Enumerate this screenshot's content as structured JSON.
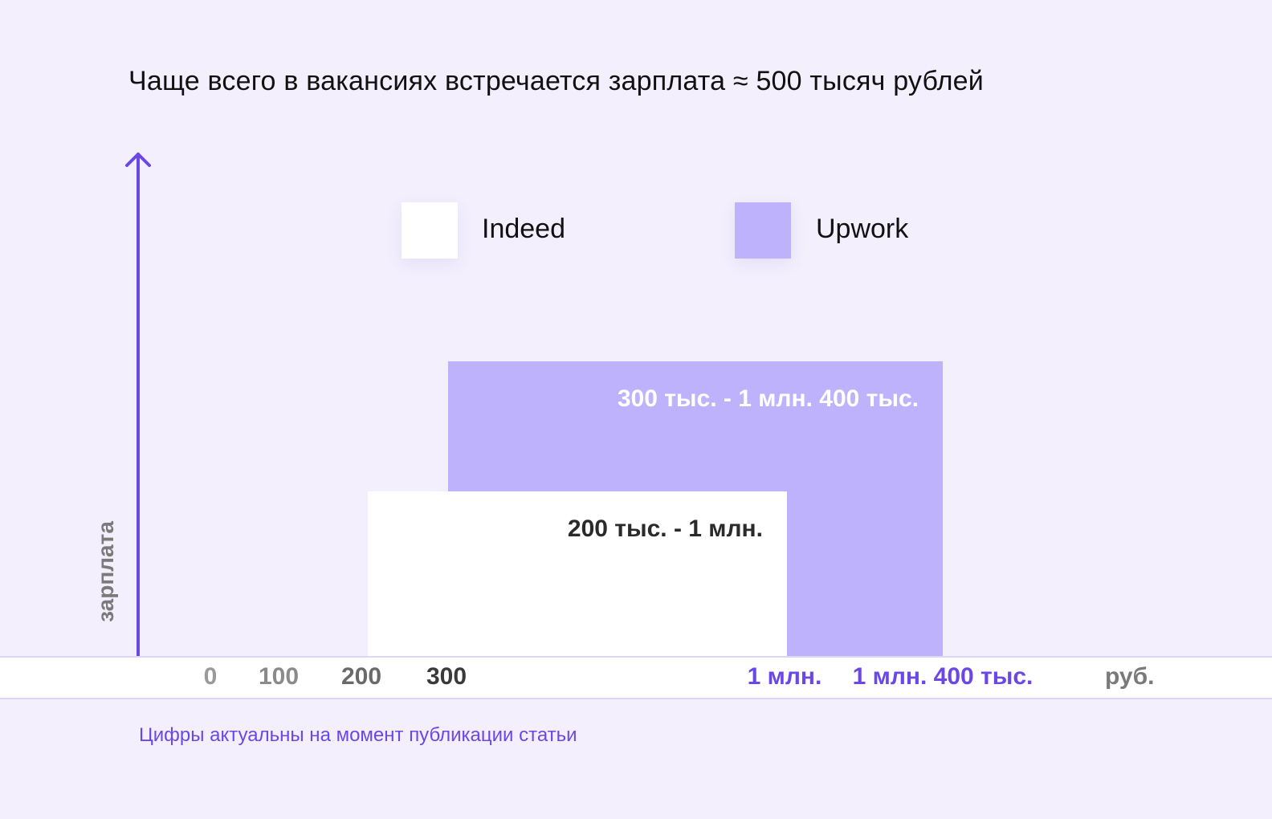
{
  "chart_data": {
    "type": "bar",
    "title": "Чаще всего в вакансиях встречается зарплата ≈ 500 тысяч рублей",
    "ylabel": "зарплата",
    "xunit": "руб.",
    "x_ticks": [
      "0",
      "100",
      "200",
      "300",
      "1 млн.",
      "1 млн. 400 тыс."
    ],
    "x_tick_values": [
      0,
      100000,
      200000,
      300000,
      1000000,
      1400000
    ],
    "legend": [
      {
        "name": "Indeed",
        "color": "#ffffff"
      },
      {
        "name": "Upwork",
        "color": "#bfb2fd"
      }
    ],
    "series": [
      {
        "name": "Indeed",
        "from": 200000,
        "to": 1000000,
        "label": "200 тыс. - 1 млн.",
        "color": "#ffffff"
      },
      {
        "name": "Upwork",
        "from": 300000,
        "to": 1400000,
        "label": "300 тыс. - 1 млн. 400 тыс.",
        "color": "#bfb2fd"
      }
    ],
    "note": "Цифры актуальны на момент публикации статьи"
  },
  "colors": {
    "background": "#f3effd",
    "accent": "#6b47e8",
    "tick_gray": "#9a9a9a",
    "tick_dark": "#3a3a3a"
  }
}
